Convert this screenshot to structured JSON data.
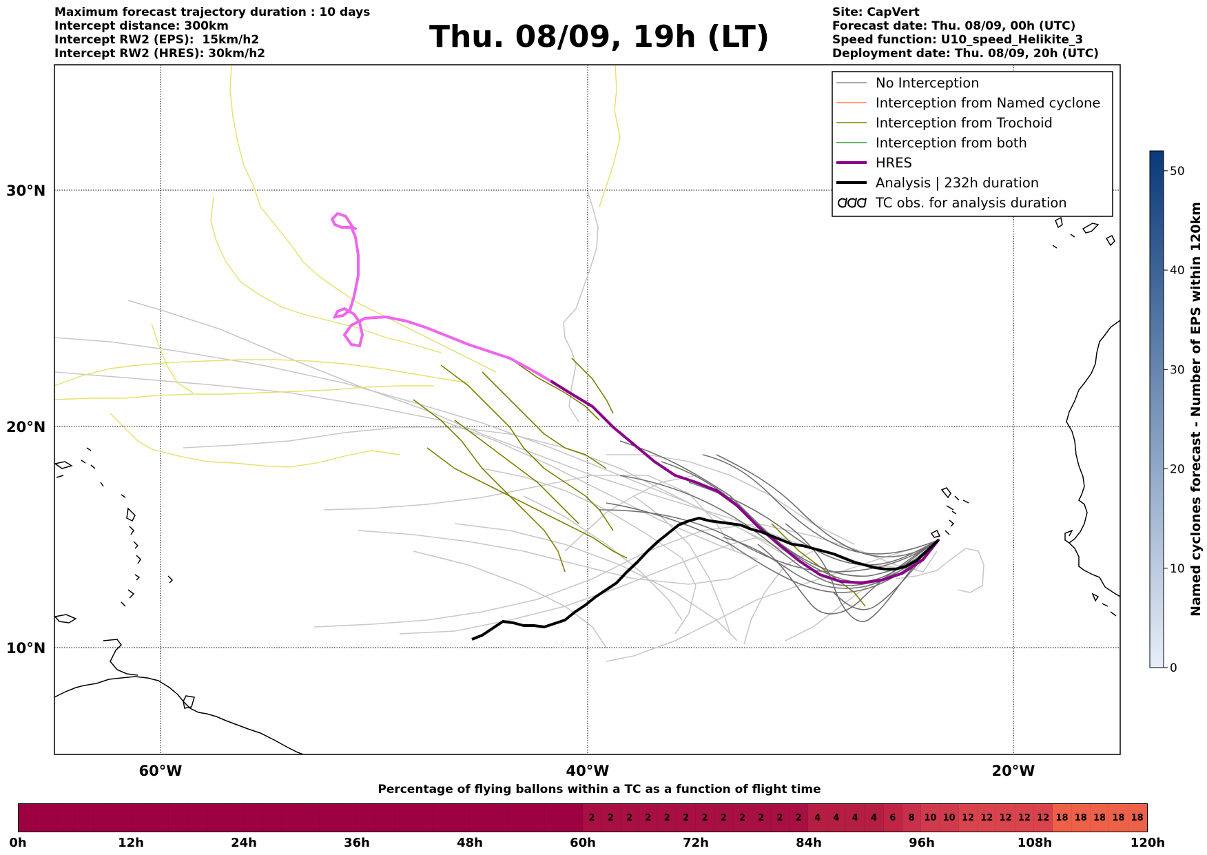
{
  "header": {
    "left_lines": [
      "Maximum forecast trajectory duration : 10 days",
      "Intercept distance: 300km",
      "Intercept RW2 (EPS):  15km/h2",
      "Intercept RW2 (HRES): 30km/h2"
    ],
    "title": "Thu. 08/09, 19h (LT)",
    "right_lines": [
      "Site: CapVert",
      "Forecast date: Thu. 08/09, 00h (UTC)",
      "Speed function: U10_speed_Helikite_3",
      "Deployment date: Thu. 08/09, 20h (UTC)"
    ]
  },
  "map": {
    "lat_labels": [
      "30°N",
      "20°N",
      "10°N"
    ],
    "lon_labels": [
      "60°W",
      "40°W",
      "20°W"
    ],
    "lon_range": [
      -65,
      -15
    ],
    "lat_range": [
      5.5,
      35
    ]
  },
  "legend": {
    "items": [
      {
        "label": "No Interception",
        "color": "#8a8a8a",
        "kind": "line"
      },
      {
        "label": "Interception from Named cyclone",
        "color": "#ff7f50",
        "kind": "line"
      },
      {
        "label": "Interception from Trochoid",
        "color": "#808000",
        "kind": "line"
      },
      {
        "label": "Interception from both",
        "color": "#2ca02c",
        "kind": "line"
      },
      {
        "label": "HRES",
        "color": "#8b008b",
        "kind": "thick"
      },
      {
        "label": "Analysis | 232h duration",
        "color": "#000000",
        "kind": "thick"
      },
      {
        "label": "TC obs. for analysis duration",
        "color": "#000000",
        "kind": "loops"
      }
    ]
  },
  "colorbar": {
    "label": "Named cyclones forecast - Number of EPS within 120km",
    "ticks": [
      "0",
      "10",
      "20",
      "30",
      "40",
      "50"
    ],
    "max": 52,
    "color_low": "#e6eef8",
    "color_high": "#0a3a7a"
  },
  "time_bar": {
    "title": "Percentage of flying ballons within a TC as a function of flight time",
    "values": [
      0,
      0,
      0,
      0,
      0,
      0,
      0,
      0,
      0,
      0,
      0,
      0,
      0,
      0,
      0,
      0,
      0,
      0,
      0,
      0,
      0,
      0,
      0,
      0,
      0,
      0,
      0,
      0,
      0,
      0,
      2,
      2,
      2,
      2,
      2,
      2,
      2,
      2,
      2,
      2,
      2,
      2,
      4,
      4,
      4,
      4,
      6,
      8,
      10,
      10,
      12,
      12,
      12,
      12,
      12,
      18,
      18,
      18,
      18,
      18
    ],
    "ticks": [
      "0h",
      "12h",
      "24h",
      "36h",
      "48h",
      "60h",
      "72h",
      "84h",
      "96h",
      "108h",
      "120h"
    ],
    "colors": {
      "0": "#9e0142",
      "2": "#a80f42",
      "4": "#b51e43",
      "6": "#c02444",
      "8": "#c7304a",
      "10": "#cf3a4c",
      "12": "#d8434c",
      "18": "#ec6148"
    }
  }
}
